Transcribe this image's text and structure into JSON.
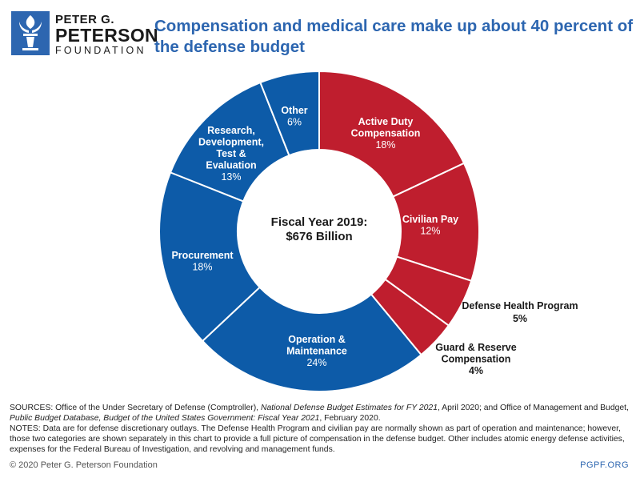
{
  "logo": {
    "line1": "PETER G.",
    "line2": "PETERSON",
    "line3": "FOUNDATION"
  },
  "title": "Compensation and medical care make up about 40 percent of the defense budget",
  "colors": {
    "red": "#bf1e2e",
    "blue": "#0d5ba8",
    "title": "#2d66b0"
  },
  "chart_data": {
    "type": "pie",
    "subtype": "donut",
    "title": "Compensation and medical care make up about 40 percent of the defense budget",
    "center_label": [
      "Fiscal Year 2019:",
      "$676 Billion"
    ],
    "unit": "percent",
    "slices": [
      {
        "name": "Active Duty Compensation",
        "label": [
          "Active Duty",
          "Compensation"
        ],
        "value": 18,
        "pct": "18%",
        "color": "#bf1e2e",
        "label_position": "inside"
      },
      {
        "name": "Civilian Pay",
        "label": [
          "Civilian Pay"
        ],
        "value": 12,
        "pct": "12%",
        "color": "#bf1e2e",
        "label_position": "inside"
      },
      {
        "name": "Defense Health Program",
        "label": [
          "Defense Health Program"
        ],
        "value": 5,
        "pct": "5%",
        "color": "#bf1e2e",
        "label_position": "outside"
      },
      {
        "name": "Guard & Reserve Compensation",
        "label": [
          "Guard & Reserve",
          "Compensation"
        ],
        "value": 4,
        "pct": "4%",
        "color": "#bf1e2e",
        "label_position": "outside"
      },
      {
        "name": "Operation & Maintenance",
        "label": [
          "Operation &",
          "Maintenance"
        ],
        "value": 24,
        "pct": "24%",
        "color": "#0d5ba8",
        "label_position": "inside"
      },
      {
        "name": "Procurement",
        "label": [
          "Procurement"
        ],
        "value": 18,
        "pct": "18%",
        "color": "#0d5ba8",
        "label_position": "inside"
      },
      {
        "name": "Research, Development, Test & Evaluation",
        "label": [
          "Research,",
          "Development,",
          "Test &",
          "Evaluation"
        ],
        "value": 13,
        "pct": "13%",
        "color": "#0d5ba8",
        "label_position": "inside"
      },
      {
        "name": "Other",
        "label": [
          "Other"
        ],
        "value": 6,
        "pct": "6%",
        "color": "#0d5ba8",
        "label_position": "inside"
      }
    ]
  },
  "footer": {
    "sources_a": "SOURCES: Office of the Under Secretary of Defense (Comptroller), ",
    "sources_b": "National Defense Budget Estimates for FY 2021",
    "sources_c": ", April 2020; and Office of Management and Budget, ",
    "sources_d": "Public Budget Database, Budget of the United States Government: Fiscal Year 2021",
    "sources_e": ", February 2020.",
    "notes": "NOTES: Data are for defense discretionary outlays. The Defense Health Program and civilian pay are normally shown as part of operation and maintenance; however, those two categories are shown separately in this chart to provide a full picture of compensation in the defense budget. Other includes atomic energy defense activities, expenses for the Federal Bureau of Investigation, and revolving and management funds.",
    "copyright": "© 2020 Peter G. Peterson Foundation",
    "url": "PGPF.ORG"
  }
}
